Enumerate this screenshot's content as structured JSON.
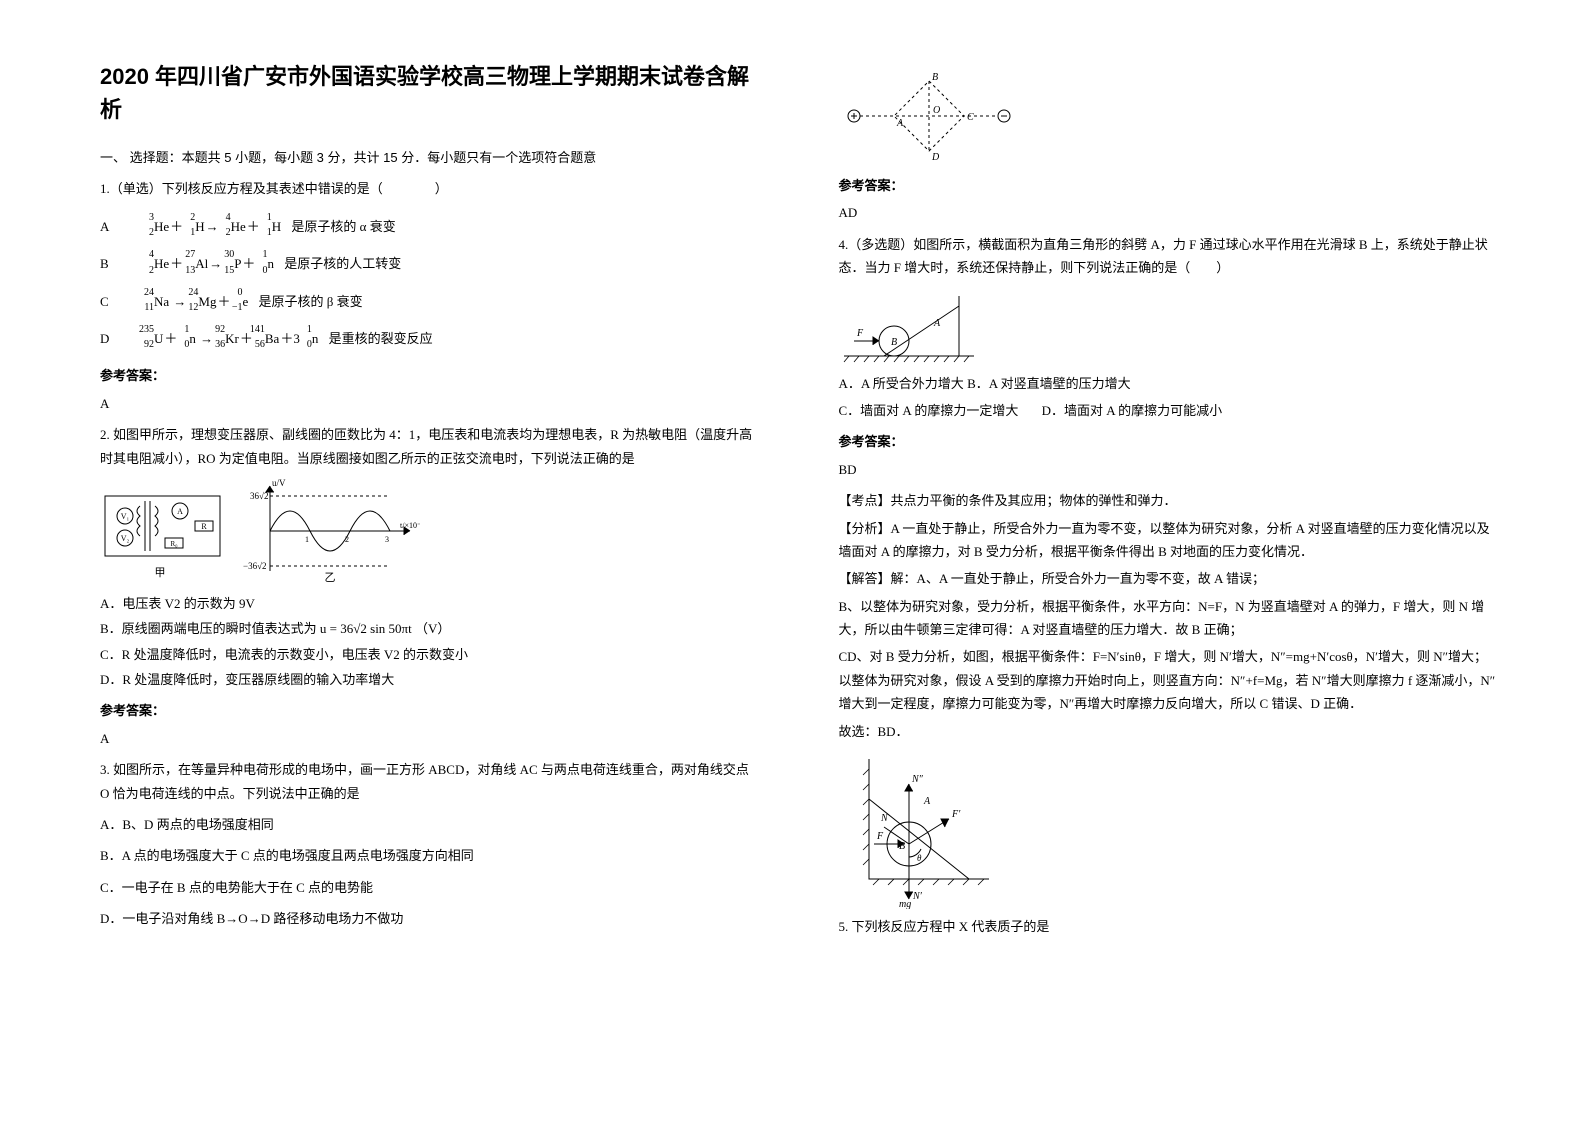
{
  "title": "2020 年四川省广安市外国语实验学校高三物理上学期期末试卷含解析",
  "section1": "一、 选择题：本题共 5 小题，每小题 3 分，共计 15 分．每小题只有一个选项符合题意",
  "q1": {
    "stem": "1.（单选）下列核反应方程及其表述中错误的是（　　　　）",
    "rows": [
      {
        "label": "A",
        "parts": [
          {
            "a": "3",
            "z": "2",
            "sym": "He"
          },
          {
            "op": "＋"
          },
          {
            "a": "2",
            "z": "1",
            "sym": "H"
          },
          {
            "op": "→"
          },
          {
            "a": "4",
            "z": "2",
            "sym": "He"
          },
          {
            "op": "＋"
          },
          {
            "a": "1",
            "z": "1",
            "sym": "H"
          }
        ],
        "tail": " 是原子核的 α 衰变"
      },
      {
        "label": "B",
        "parts": [
          {
            "a": "4",
            "z": "2",
            "sym": "He"
          },
          {
            "op": "＋"
          },
          {
            "a": "27",
            "z": "13",
            "sym": "Al"
          },
          {
            "op": "→"
          },
          {
            "a": "30",
            "z": "15",
            "sym": "P"
          },
          {
            "op": "＋"
          },
          {
            "a": "1",
            "z": "0",
            "sym": "n"
          }
        ],
        "tail": " 是原子核的人工转变"
      },
      {
        "label": "C",
        "parts": [
          {
            "a": "24",
            "z": "11",
            "sym": "Na"
          },
          {
            "op": " →"
          },
          {
            "a": "24",
            "z": "12",
            "sym": "Mg"
          },
          {
            "op": "＋"
          },
          {
            "a": "0",
            "z": "−1",
            "sym": "e"
          }
        ],
        "tail": " 是原子核的 β 衰变"
      },
      {
        "label": "D",
        "parts": [
          {
            "a": "235",
            "z": "92",
            "sym": "U"
          },
          {
            "op": "＋"
          },
          {
            "a": "1",
            "z": "0",
            "sym": "n"
          },
          {
            "op": " →"
          },
          {
            "a": "92",
            "z": "36",
            "sym": "Kr"
          },
          {
            "op": "＋"
          },
          {
            "a": "141",
            "z": "56",
            "sym": "Ba"
          },
          {
            "op": "＋3"
          },
          {
            "a": "1",
            "z": "0",
            "sym": "n"
          }
        ],
        "tail": " 是重核的裂变反应"
      }
    ]
  },
  "ref_ans": "参考答案：",
  "q1ans": "A",
  "q2": {
    "stem": "2. 如图甲所示，理想变压器原、副线圈的匝数比为 4：1，电压表和电流表均为理想电表，R 为热敏电阻（温度升高时其电阻减小），RO 为定值电阻。当原线圈接如图乙所示的正弦交流电时，下列说法正确的是",
    "opts": [
      "A．电压表 V2 的示数为 9V",
      "B．原线圈两端电压的瞬时值表达式为 u = 36√2 sin 50πt （V）",
      "C．R 处温度降低时，电流表的示数变小，电压表 V2 的示数变小",
      "D．R 处温度降低时，变压器原线圈的输入功率增大"
    ],
    "graph": {
      "ymax": "36√2",
      "ymin": "−36√2",
      "ylabel": "u/V",
      "xlabel": "t/×10⁻² s",
      "xticks": [
        "1",
        "2",
        "3"
      ],
      "cap": "乙",
      "cap2": "甲"
    }
  },
  "q2ans": "A",
  "q3": {
    "stem": "3. 如图所示，在等量异种电荷形成的电场中，画一正方形 ABCD，对角线 AC 与两点电荷连线重合，两对角线交点 O 恰为电荷连线的中点。下列说法中正确的是",
    "opts": [
      "A．B、D 两点的电场强度相同",
      "B．A 点的电场强度大于 C 点的电场强度且两点电场强度方向相同",
      "C．一电子在 B 点的电势能大于在 C 点的电势能",
      "D．一电子沿对角线 B→O→D 路径移动电场力不做功"
    ],
    "fig": {
      "A": "A",
      "B": "B",
      "C": "C",
      "D": "D",
      "O": "O"
    }
  },
  "q3ans": "AD",
  "q4": {
    "stem": "4.（多选题）如图所示，横截面积为直角三角形的斜劈 A，力 F 通过球心水平作用在光滑球 B 上，系统处于静止状态．当力 F 增大时，系统还保持静止，则下列说法正确的是（　　）",
    "opts": [
      "A．A 所受合外力增大",
      "B．A 对竖直墙壁的压力增大",
      "C．墙面对 A 的摩擦力一定增大",
      "D．墙面对 A 的摩擦力可能减小"
    ],
    "fig": {
      "A": "A",
      "B": "B",
      "F": "F"
    }
  },
  "q4ans": "BD",
  "q4sol": {
    "kp": "【考点】共点力平衡的条件及其应用；物体的弹性和弹力．",
    "an": "【分析】A 一直处于静止，所受合外力一直为零不变，以整体为研究对象，分析 A 对竖直墙壁的压力变化情况以及墙面对 A 的摩擦力，对 B 受力分析，根据平衡条件得出 B 对地面的压力变化情况．",
    "jd": "【解答】解：A、A 一直处于静止，所受合外力一直为零不变，故 A 错误；",
    "b": "B、以整体为研究对象，受力分析，根据平衡条件，水平方向：N=F，N 为竖直墙壁对 A 的弹力，F 增大，则 N 增大，所以由牛顿第三定律可得：A 对竖直墙壁的压力增大．故 B 正确；",
    "cd": "CD、对 B 受力分析，如图，根据平衡条件：F=N′sinθ，F 增大，则 N′增大，N″=mg+N′cosθ，N′增大，则 N″增大；以整体为研究对象，假设 A 受到的摩擦力开始时向上，则竖直方向：N″+f=Mg，若 N″增大则摩擦力 f 逐渐减小，N″增大到一定程度，摩擦力可能变为零，N″再增大时摩擦力反向增大，所以 C 错误、D 正确．",
    "gx": "故选：BD．",
    "fig": {
      "F": "F",
      "Fp": "F′",
      "N": "N",
      "Np": "N′",
      "Npp": "N″",
      "mg": "mg",
      "A": "A",
      "B": "B",
      "theta": "θ"
    }
  },
  "q5": {
    "stem": "5. 下列核反应方程中 X 代表质子的是"
  }
}
